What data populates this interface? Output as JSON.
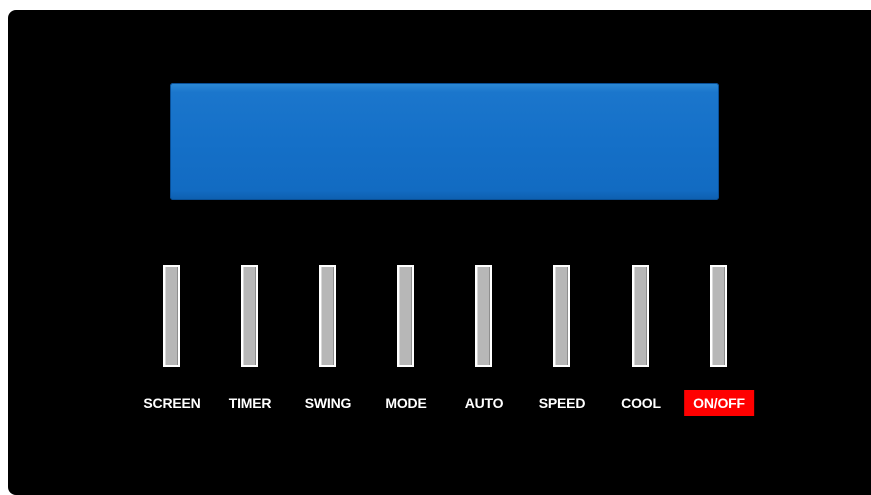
{
  "control_panel": {
    "display": {
      "color": "#1570c8"
    },
    "buttons": [
      {
        "label": "SCREEN"
      },
      {
        "label": "TIMER"
      },
      {
        "label": "SWING"
      },
      {
        "label": "MODE"
      },
      {
        "label": "AUTO"
      },
      {
        "label": "SPEED"
      },
      {
        "label": "COOL"
      },
      {
        "label": "ON/OFF",
        "highlight_color": "#ff0000"
      }
    ]
  }
}
